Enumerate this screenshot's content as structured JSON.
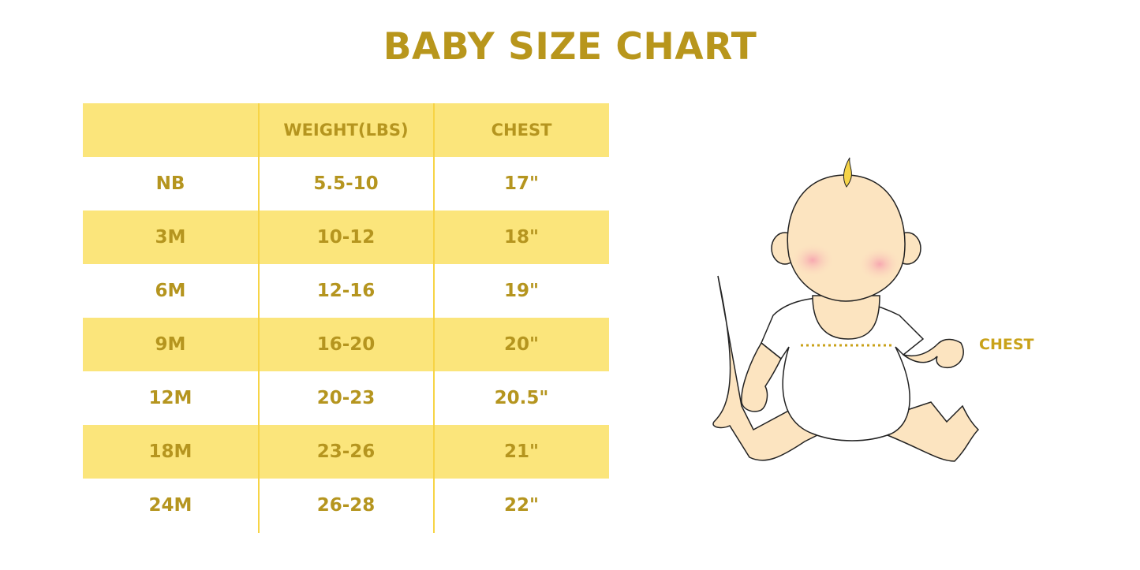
{
  "title": "BABY SIZE CHART",
  "table": {
    "headers": [
      "",
      "WEIGHT(LBS)",
      "CHEST"
    ],
    "rows": [
      [
        "NB",
        "5.5-10",
        "17\""
      ],
      [
        "3M",
        "10-12",
        "18\""
      ],
      [
        "6M",
        "12-16",
        "19\""
      ],
      [
        "9M",
        "16-20",
        "20\""
      ],
      [
        "12M",
        "20-23",
        "20.5\""
      ],
      [
        "18M",
        "23-26",
        "21\""
      ],
      [
        "24M",
        "26-28",
        "22\""
      ]
    ]
  },
  "illustration": {
    "chest_label": "CHEST"
  },
  "colors": {
    "accent": "#B8961C",
    "stripe": "#FBE57B",
    "divider": "#F7D445",
    "skin": "#FCE4C0"
  }
}
